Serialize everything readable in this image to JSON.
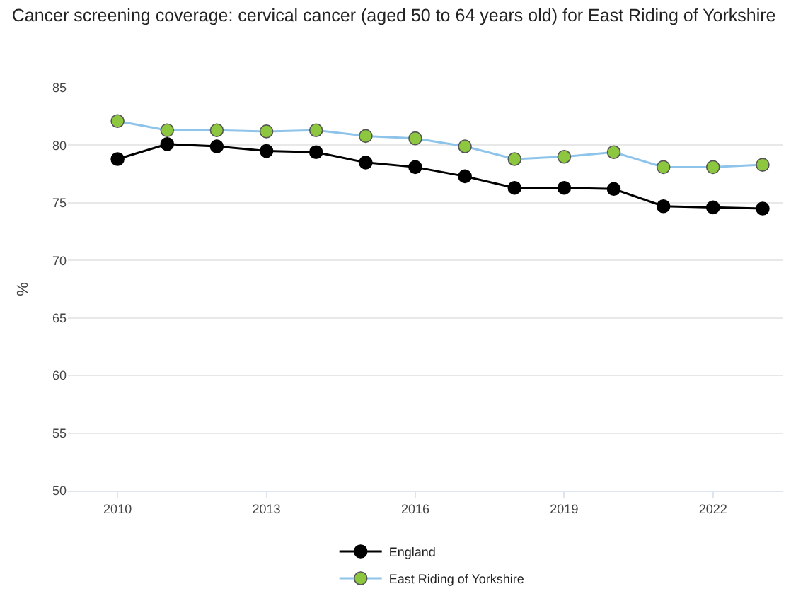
{
  "chart_data": {
    "type": "line",
    "title": "Cancer screening coverage: cervical cancer (aged 50 to 64 years old) for East Riding of Yorkshire",
    "ylabel": "%",
    "x": [
      2010,
      2011,
      2012,
      2013,
      2014,
      2015,
      2016,
      2017,
      2018,
      2019,
      2020,
      2021,
      2022,
      2023
    ],
    "series": [
      {
        "name": "England",
        "color": "#000000",
        "values": [
          78.8,
          80.1,
          79.9,
          79.5,
          79.4,
          78.5,
          78.1,
          77.3,
          76.3,
          76.3,
          76.2,
          74.7,
          74.6,
          74.5
        ]
      },
      {
        "name": "East Riding of Yorkshire",
        "color": "#8ec3ea",
        "colors": [
          "#8dc63f",
          "#8dc63f",
          "#8dc63f",
          "#8dc63f",
          "#8dc63f",
          "#8dc63f",
          "#8dc63f",
          "#8dc63f",
          "#8dc63f",
          "#8dc63f",
          "#8dc63f",
          "#8dc63f",
          "#8dc63f",
          "#8dc63f"
        ],
        "values": [
          82.1,
          81.3,
          81.3,
          81.2,
          81.3,
          80.8,
          80.6,
          79.9,
          78.8,
          79.0,
          79.4,
          78.1,
          78.1,
          78.3
        ]
      }
    ],
    "xlim": [
      2009,
      2023.4
    ],
    "xticks": [
      2010,
      2013,
      2016,
      2019,
      2022
    ],
    "ylim": [
      50,
      85
    ],
    "yticks": [
      50,
      55,
      60,
      65,
      70,
      75,
      80,
      85
    ],
    "grid": "y",
    "legend": "bottom",
    "marker": "circle",
    "line_style": "solid"
  }
}
